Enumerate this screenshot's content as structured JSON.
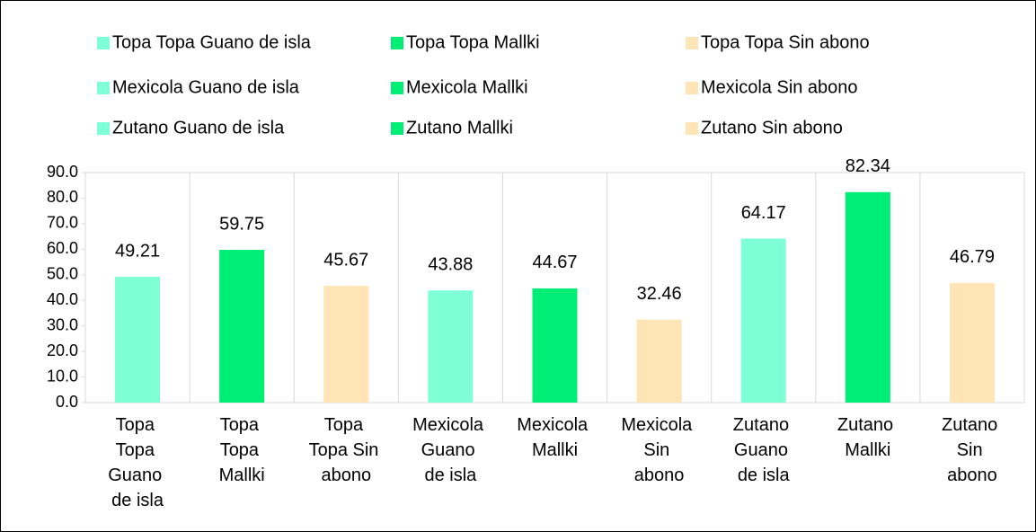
{
  "chart_data": {
    "type": "bar",
    "categories": [
      "Topa Topa Guano de isla",
      "Topa Topa Mallki",
      "Topa Topa Sin abono",
      "Mexicola Guano de isla",
      "Mexicola Mallki",
      "Mexicola Sin abono",
      "Zutano Guano de isla",
      "Zutano Mallki",
      "Zutano Sin abono"
    ],
    "values": [
      49.21,
      59.75,
      45.67,
      43.88,
      44.67,
      32.46,
      64.17,
      82.34,
      46.79
    ],
    "colors": [
      "#7fffd4",
      "#00ee76",
      "#ffe4b5",
      "#7fffd4",
      "#00ee76",
      "#ffe4b5",
      "#7fffd4",
      "#00ee76",
      "#ffe4b5"
    ],
    "ylim": [
      0,
      90
    ],
    "yticks": [
      {
        "value": 0,
        "label": "0.0"
      },
      {
        "value": 10,
        "label": "10.0"
      },
      {
        "value": 20,
        "label": "20.0"
      },
      {
        "value": 30,
        "label": "30.0"
      },
      {
        "value": 40,
        "label": "40.0"
      },
      {
        "value": 50,
        "label": "50.0"
      },
      {
        "value": 60,
        "label": "60.0"
      },
      {
        "value": 70,
        "label": "70.0"
      },
      {
        "value": 80,
        "label": "80.0"
      },
      {
        "value": 90,
        "label": "90.0"
      }
    ],
    "legend": "top"
  }
}
